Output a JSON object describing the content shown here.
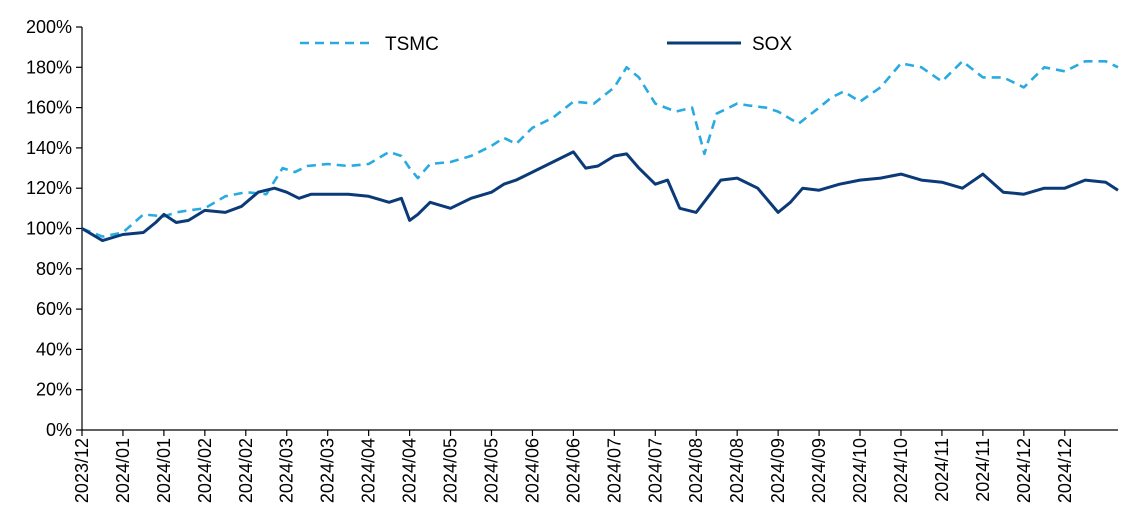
{
  "chart_data": {
    "type": "line",
    "title": "",
    "xlabel": "",
    "ylabel": "",
    "ylim": [
      0,
      200
    ],
    "y_ticks": [
      "0%",
      "20%",
      "40%",
      "60%",
      "80%",
      "100%",
      "120%",
      "140%",
      "160%",
      "180%",
      "200%"
    ],
    "x_tick_labels": [
      "2023/12",
      "2024/01",
      "2024/01",
      "2024/02",
      "2024/02",
      "2024/03",
      "2024/03",
      "2024/04",
      "2024/04",
      "2024/05",
      "2024/05",
      "2024/06",
      "2024/06",
      "2024/07",
      "2024/07",
      "2024/08",
      "2024/08",
      "2024/09",
      "2024/09",
      "2024/10",
      "2024/10",
      "2024/11",
      "2024/11",
      "2024/12",
      "2024/12"
    ],
    "x_tick_positions": [
      0,
      1,
      2,
      3,
      4,
      5,
      6,
      7,
      8,
      9,
      10,
      11,
      12,
      13,
      14,
      15,
      16,
      17,
      18,
      19,
      20,
      21,
      22,
      23,
      24
    ],
    "xlim": [
      0,
      25.3
    ],
    "grid": false,
    "legend_position": "top",
    "colors": {
      "TSMC": "#29abe2",
      "SOX": "#0b3a78"
    },
    "series": [
      {
        "name": "TSMC",
        "style": "dashed",
        "x": [
          0,
          0.5,
          1.0,
          1.5,
          2.0,
          2.3,
          2.6,
          3.0,
          3.5,
          4.0,
          4.5,
          4.9,
          5.2,
          5.5,
          6.0,
          6.5,
          7.0,
          7.5,
          7.8,
          8.0,
          8.2,
          8.5,
          9.0,
          9.5,
          10.0,
          10.3,
          10.6,
          11.0,
          11.5,
          12.0,
          12.5,
          13.0,
          13.3,
          13.6,
          14.0,
          14.5,
          14.9,
          15.2,
          15.5,
          16.0,
          16.3,
          16.7,
          17.0,
          17.5,
          18.0,
          18.3,
          18.6,
          19.0,
          19.5,
          20.0,
          20.5,
          21.0,
          21.5,
          22.0,
          22.5,
          23.0,
          23.5,
          24.0,
          24.5,
          25.0,
          25.3
        ],
        "y": [
          100,
          96,
          98,
          107,
          106,
          108,
          109,
          110,
          116,
          118,
          117,
          130,
          128,
          131,
          132,
          131,
          132,
          138,
          136,
          130,
          125,
          132,
          133,
          136,
          141,
          145,
          142,
          150,
          155,
          163,
          162,
          170,
          180,
          175,
          162,
          158,
          160,
          137,
          157,
          162,
          161,
          160,
          158,
          152,
          160,
          165,
          168,
          163,
          170,
          182,
          180,
          173,
          183,
          175,
          175,
          170,
          180,
          178,
          183,
          183,
          180
        ]
      },
      {
        "name": "SOX",
        "style": "solid",
        "x": [
          0,
          0.5,
          1.0,
          1.5,
          1.8,
          2.0,
          2.3,
          2.6,
          3.0,
          3.5,
          3.9,
          4.3,
          4.7,
          5.0,
          5.3,
          5.6,
          6.0,
          6.5,
          7.0,
          7.5,
          7.8,
          8.0,
          8.2,
          8.5,
          9.0,
          9.5,
          10.0,
          10.3,
          10.6,
          11.0,
          11.5,
          12.0,
          12.3,
          12.6,
          13.0,
          13.3,
          13.6,
          14.0,
          14.3,
          14.6,
          15.0,
          15.3,
          15.6,
          16.0,
          16.5,
          17.0,
          17.3,
          17.6,
          18.0,
          18.5,
          19.0,
          19.5,
          20.0,
          20.5,
          21.0,
          21.5,
          22.0,
          22.5,
          23.0,
          23.5,
          24.0,
          24.5,
          25.0,
          25.3
        ],
        "y": [
          100,
          94,
          97,
          98,
          103,
          107,
          103,
          104,
          109,
          108,
          111,
          118,
          120,
          118,
          115,
          117,
          117,
          117,
          116,
          113,
          115,
          104,
          107,
          113,
          110,
          115,
          118,
          122,
          124,
          128,
          133,
          138,
          130,
          131,
          136,
          137,
          130,
          122,
          124,
          110,
          108,
          116,
          124,
          125,
          120,
          108,
          113,
          120,
          119,
          122,
          124,
          125,
          127,
          124,
          123,
          120,
          127,
          118,
          117,
          120,
          120,
          124,
          123,
          119
        ]
      }
    ]
  }
}
